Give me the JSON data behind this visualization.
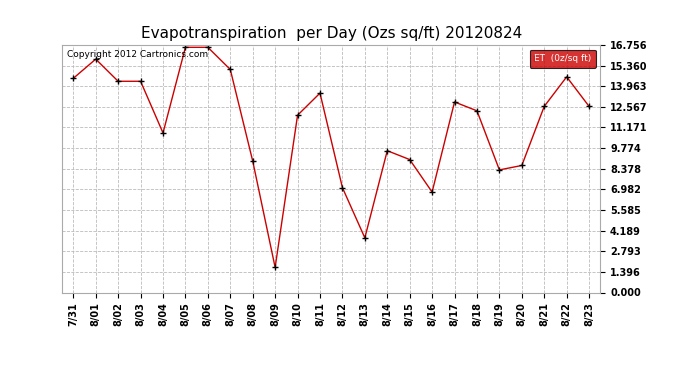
{
  "title": "Evapotranspiration  per Day (Ozs sq/ft) 20120824",
  "copyright_text": "Copyright 2012 Cartronics.com",
  "legend_label": "ET  (0z/sq ft)",
  "legend_bg": "#cc0000",
  "legend_text_color": "#ffffff",
  "x_labels": [
    "7/31",
    "8/01",
    "8/02",
    "8/03",
    "8/04",
    "8/05",
    "8/06",
    "8/07",
    "8/08",
    "8/09",
    "8/10",
    "8/11",
    "8/12",
    "8/13",
    "8/14",
    "8/15",
    "8/16",
    "8/17",
    "8/18",
    "8/19",
    "8/20",
    "8/21",
    "8/22",
    "8/23"
  ],
  "y_values": [
    14.5,
    15.8,
    14.3,
    14.3,
    10.8,
    16.6,
    16.6,
    15.1,
    8.9,
    1.7,
    12.0,
    13.5,
    7.1,
    3.7,
    9.6,
    9.0,
    6.8,
    12.9,
    12.3,
    8.3,
    8.6,
    12.6,
    14.6,
    12.6
  ],
  "y_ticks": [
    0.0,
    1.396,
    2.793,
    4.189,
    5.585,
    6.982,
    8.378,
    9.774,
    11.171,
    12.567,
    13.963,
    15.36,
    16.756
  ],
  "line_color": "#cc0000",
  "marker_color": "#000000",
  "marker_style": "+",
  "marker_size": 5,
  "grid_color": "#bbbbbb",
  "grid_style": "--",
  "bg_color": "#ffffff",
  "plot_bg_color": "#ffffff",
  "title_fontsize": 11,
  "tick_fontsize": 7,
  "copyright_fontsize": 6.5
}
